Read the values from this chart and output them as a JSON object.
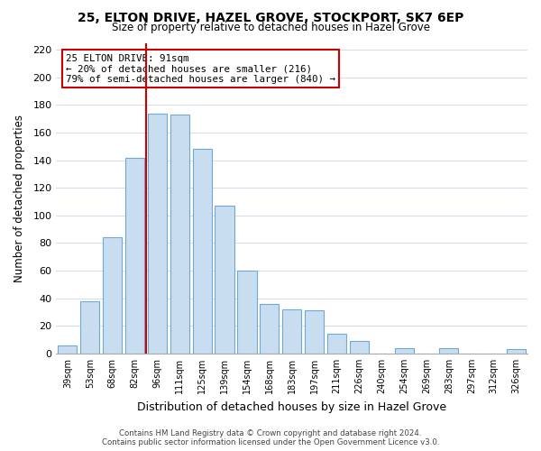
{
  "title": "25, ELTON DRIVE, HAZEL GROVE, STOCKPORT, SK7 6EP",
  "subtitle": "Size of property relative to detached houses in Hazel Grove",
  "xlabel": "Distribution of detached houses by size in Hazel Grove",
  "ylabel": "Number of detached properties",
  "categories": [
    "39sqm",
    "53sqm",
    "68sqm",
    "82sqm",
    "96sqm",
    "111sqm",
    "125sqm",
    "139sqm",
    "154sqm",
    "168sqm",
    "183sqm",
    "197sqm",
    "211sqm",
    "226sqm",
    "240sqm",
    "254sqm",
    "269sqm",
    "283sqm",
    "297sqm",
    "312sqm",
    "326sqm"
  ],
  "values": [
    6,
    38,
    84,
    142,
    174,
    173,
    148,
    107,
    60,
    36,
    32,
    31,
    14,
    9,
    0,
    4,
    0,
    4,
    0,
    0,
    3
  ],
  "bar_color": "#c9ddf0",
  "bar_edge_color": "#6fa8d6",
  "red_line_index": 3.5,
  "annotation_text_line1": "25 ELTON DRIVE: 91sqm",
  "annotation_text_line2": "← 20% of detached houses are smaller (216)",
  "annotation_text_line3": "79% of semi-detached houses are larger (840) →",
  "annotation_box_color": "#ffffff",
  "annotation_box_edge_color": "#cc0000",
  "red_line_color": "#cc0000",
  "ylim": [
    0,
    225
  ],
  "yticks": [
    0,
    20,
    40,
    60,
    80,
    100,
    120,
    140,
    160,
    180,
    200,
    220
  ],
  "footer_line1": "Contains HM Land Registry data © Crown copyright and database right 2024.",
  "footer_line2": "Contains public sector information licensed under the Open Government Licence v3.0.",
  "background_color": "#ffffff",
  "grid_color": "#d0dce8"
}
